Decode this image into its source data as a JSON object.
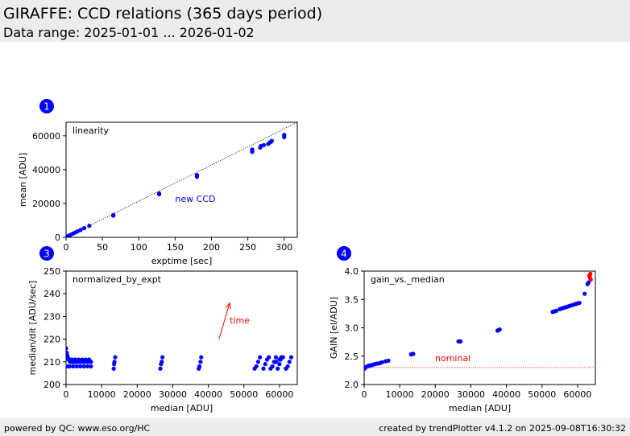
{
  "header": {
    "title": "GIRAFFE: CCD relations (365 days period)",
    "subtitle": "Data range: 2025-01-01 ... 2026-01-02"
  },
  "footer": {
    "left": "powered by QC: www.eso.org/HC",
    "right": "created by trendPlotter v4.1.2 on 2025-09-08T16:30:32"
  },
  "colors": {
    "points": "#0000ff",
    "annotation": "#ff0000",
    "badge": "#0000ff",
    "header_bg": "#ececec"
  },
  "chart_data": [
    {
      "badge": "1",
      "type": "scatter",
      "panel_label": "linearity",
      "xlabel": "exptime [sec]",
      "ylabel": "mean [ADU]",
      "xlim": [
        0,
        318
      ],
      "ylim": [
        0,
        68000
      ],
      "xticks": [
        0,
        50,
        100,
        150,
        200,
        250,
        300
      ],
      "yticks": [
        0,
        20000,
        40000,
        60000
      ],
      "fit_line": {
        "x": [
          0,
          318
        ],
        "y": [
          0,
          68000
        ]
      },
      "annotations": [
        {
          "text": "new CCD",
          "x": 150,
          "y": 21000
        }
      ],
      "series": [
        {
          "x": [
            0,
            1,
            2,
            3,
            5,
            7,
            10,
            13,
            16,
            20,
            25,
            32,
            65,
            65,
            128,
            128,
            180,
            180,
            180,
            256,
            256,
            256,
            267,
            268,
            272,
            278,
            280,
            282,
            283,
            300,
            300,
            300
          ],
          "y": [
            0,
            250,
            500,
            800,
            1200,
            1700,
            2300,
            2900,
            3600,
            4400,
            5400,
            6800,
            12800,
            13200,
            25500,
            25900,
            35800,
            36300,
            36800,
            50500,
            51200,
            51900,
            53000,
            54000,
            54500,
            55200,
            56000,
            56500,
            57000,
            59200,
            60000,
            60500
          ]
        }
      ]
    },
    {
      "badge": "3",
      "type": "scatter",
      "panel_label": "normalized_by_expt",
      "xlabel": "median [ADU]",
      "ylabel": "median/dit [ADU/sec]",
      "xlim": [
        0,
        65000
      ],
      "ylim": [
        200,
        250
      ],
      "xticks": [
        0,
        10000,
        20000,
        30000,
        40000,
        50000,
        60000
      ],
      "yticks": [
        200,
        210,
        220,
        230,
        240,
        250
      ],
      "arrow": {
        "label": "time",
        "x_start": 43000,
        "y_start": 220,
        "x_end": 46000,
        "y_end": 236
      },
      "series": [
        {
          "x": [
            0,
            200,
            300,
            500,
            700,
            900,
            1100,
            1300,
            1500,
            1800,
            2000,
            2300,
            2600,
            2900,
            3200,
            3600,
            4000,
            4500,
            5000,
            5500,
            6000,
            6500,
            7000,
            500,
            1000,
            2000,
            3000,
            4000,
            5000,
            6000,
            7000,
            1500,
            2500,
            3500,
            4500,
            5500,
            6500,
            13400,
            13500,
            13600,
            13800,
            26500,
            26700,
            26900,
            27100,
            37300,
            37500,
            37800,
            38000,
            53000,
            53500,
            54000,
            54500,
            55500,
            56000,
            56500,
            57000,
            57500,
            58000,
            58500,
            59000,
            59500,
            60000,
            60300,
            60500,
            61800,
            62300,
            62800,
            63300,
            58000,
            59000,
            60000,
            61000
          ],
          "y": [
            216,
            214,
            213,
            212,
            211,
            211,
            210,
            210,
            210,
            210,
            210,
            210,
            210,
            210,
            210,
            210,
            210,
            210,
            210,
            210,
            210,
            210,
            210,
            208,
            208,
            208,
            208,
            208,
            208,
            208,
            208,
            211,
            211,
            211,
            211,
            211,
            211,
            207,
            209,
            210,
            212,
            207,
            209,
            210,
            212,
            207,
            208,
            210,
            212,
            207,
            208,
            210,
            212,
            207,
            209,
            211,
            212,
            207,
            208,
            210,
            212,
            207,
            209,
            211,
            212,
            207,
            208,
            210,
            212,
            208,
            210,
            211,
            212
          ]
        }
      ]
    },
    {
      "badge": "4",
      "type": "scatter",
      "panel_label": "gain_vs._median",
      "xlabel": "median [ADU]",
      "ylabel": "GAIN [el/ADU]",
      "xlim": [
        0,
        65000
      ],
      "ylim": [
        2.0,
        4.0
      ],
      "xticks": [
        0,
        10000,
        20000,
        30000,
        40000,
        50000,
        60000
      ],
      "yticks": [
        2.0,
        2.5,
        3.0,
        3.5,
        4.0
      ],
      "reference_line": {
        "label": "nominal",
        "y": 2.3
      },
      "series": [
        {
          "x": [
            100,
            300,
            600,
            900,
            1200,
            1500,
            1800,
            2100,
            2500,
            3000,
            3500,
            4000,
            4500,
            5000,
            6000,
            6800,
            13200,
            13500,
            13800,
            26500,
            26800,
            27100,
            37500,
            37800,
            38100,
            53000,
            53500,
            54000,
            55000,
            55500,
            56000,
            56500,
            57000,
            57500,
            58000,
            58500,
            59000,
            59500,
            60000,
            60500,
            62000,
            62800,
            63100
          ],
          "y": [
            2.28,
            2.3,
            2.31,
            2.32,
            2.33,
            2.33,
            2.34,
            2.34,
            2.35,
            2.36,
            2.37,
            2.37,
            2.38,
            2.39,
            2.41,
            2.42,
            2.53,
            2.54,
            2.54,
            2.76,
            2.76,
            2.76,
            2.95,
            2.96,
            2.97,
            3.28,
            3.29,
            3.3,
            3.33,
            3.34,
            3.35,
            3.36,
            3.37,
            3.38,
            3.39,
            3.4,
            3.41,
            3.42,
            3.43,
            3.44,
            3.6,
            3.77,
            3.8
          ]
        }
      ],
      "highlight_points": {
        "color": "#ff0000",
        "x": [
          63300,
          63500,
          63600,
          63700
        ],
        "y": [
          3.92,
          3.88,
          3.95,
          3.85
        ]
      }
    }
  ]
}
